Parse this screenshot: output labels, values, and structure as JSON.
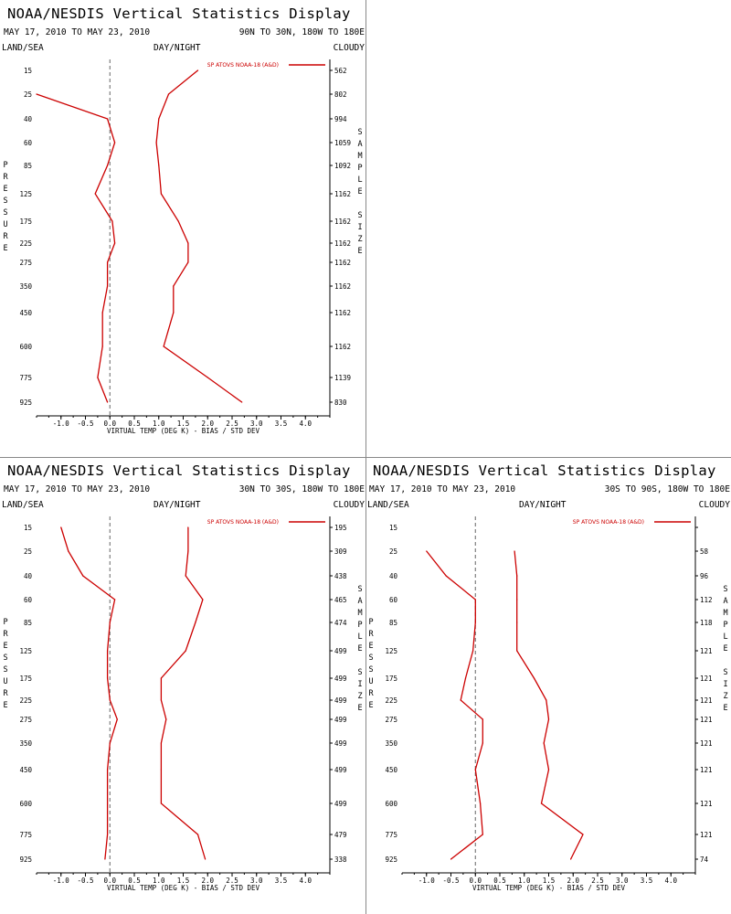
{
  "chart_data": [
    {
      "type": "line",
      "title": "NOAA/NESDIS Vertical Statistics Display",
      "dates": "MAY 17, 2010 TO MAY 23, 2010",
      "region": "90N TO 30N, 180W TO 180E",
      "header": {
        "left": "LAND/SEA",
        "center": "DAY/NIGHT",
        "right": "CLOUDY"
      },
      "xlabel": "VIRTUAL TEMP (DEG K) - BIAS / STD DEV",
      "ylabel": "PRESSURE",
      "y2label": "SAMPLE SIZE",
      "legend": "SP ATOVS NOAA-18 (A&D)",
      "xlim": [
        -1.5,
        4.5
      ],
      "x_ticks": [
        "-1.0",
        "-0.5",
        "0.0",
        "0.5",
        "1.0",
        "1.5",
        "2.0",
        "2.5",
        "3.0",
        "3.5",
        "4.0"
      ],
      "pressure": [
        "15",
        "25",
        "40",
        "60",
        "85",
        "125",
        "175",
        "225",
        "275",
        "350",
        "450",
        "600",
        "775",
        "925"
      ],
      "sample_size": [
        "562",
        "802",
        "994",
        "1059",
        "1092",
        "1162",
        "1162",
        "1162",
        "1162",
        "1162",
        "1162",
        "1162",
        "1139",
        "830"
      ],
      "series": [
        {
          "values": [
            null,
            -1.5,
            -0.05,
            0.1,
            -0.05,
            -0.3,
            0.05,
            0.1,
            -0.05,
            -0.05,
            -0.15,
            -0.15,
            -0.25,
            -0.05
          ]
        },
        {
          "values": [
            1.8,
            1.2,
            1.0,
            0.95,
            1.0,
            1.05,
            1.4,
            1.6,
            1.6,
            1.3,
            1.3,
            1.1,
            2.0,
            2.7
          ]
        }
      ]
    },
    {
      "type": "line",
      "title": "NOAA/NESDIS Vertical Statistics Display",
      "dates": "MAY 17, 2010 TO MAY 23, 2010",
      "region": "30N TO 30S, 180W TO 180E",
      "header": {
        "left": "LAND/SEA",
        "center": "DAY/NIGHT",
        "right": "CLOUDY"
      },
      "xlabel": "VIRTUAL TEMP (DEG K) - BIAS / STD DEV",
      "ylabel": "PRESSURE",
      "y2label": "SAMPLE SIZE",
      "legend": "SP ATOVS NOAA-18 (A&D)",
      "xlim": [
        -1.5,
        4.5
      ],
      "x_ticks": [
        "-1.0",
        "-0.5",
        "0.0",
        "0.5",
        "1.0",
        "1.5",
        "2.0",
        "2.5",
        "3.0",
        "3.5",
        "4.0"
      ],
      "pressure": [
        "15",
        "25",
        "40",
        "60",
        "85",
        "125",
        "175",
        "225",
        "275",
        "350",
        "450",
        "600",
        "775",
        "925"
      ],
      "sample_size": [
        "195",
        "309",
        "438",
        "465",
        "474",
        "499",
        "499",
        "499",
        "499",
        "499",
        "499",
        "499",
        "479",
        "338"
      ],
      "series": [
        {
          "values": [
            -1.0,
            -0.85,
            -0.55,
            0.1,
            0.0,
            -0.05,
            -0.05,
            0.0,
            0.15,
            0.0,
            -0.05,
            -0.05,
            -0.05,
            -0.1
          ]
        },
        {
          "values": [
            1.6,
            1.6,
            1.55,
            1.9,
            1.75,
            1.55,
            1.05,
            1.05,
            1.15,
            1.05,
            1.05,
            1.05,
            1.8,
            1.95
          ]
        }
      ]
    },
    {
      "type": "line",
      "title": "NOAA/NESDIS Vertical Statistics Display",
      "dates": "MAY 17, 2010 TO MAY 23, 2010",
      "region": "30S TO 90S, 180W TO 180E",
      "header": {
        "left": "LAND/SEA",
        "center": "DAY/NIGHT",
        "right": "CLOUDY"
      },
      "xlabel": "VIRTUAL TEMP (DEG K) - BIAS / STD DEV",
      "ylabel": "PRESSURE",
      "y2label": "SAMPLE SIZE",
      "legend": "SP ATOVS NOAA-18 (A&D)",
      "xlim": [
        -1.5,
        4.5
      ],
      "x_ticks": [
        "-1.0",
        "-0.5",
        "0.0",
        "0.5",
        "1.0",
        "1.5",
        "2.0",
        "2.5",
        "3.0",
        "3.5",
        "4.0"
      ],
      "pressure": [
        "15",
        "25",
        "40",
        "60",
        "85",
        "125",
        "175",
        "225",
        "275",
        "350",
        "450",
        "600",
        "775",
        "925"
      ],
      "sample_size": [
        "",
        "58",
        "96",
        "112",
        "118",
        "121",
        "121",
        "121",
        "121",
        "121",
        "121",
        "121",
        "121",
        "74"
      ],
      "series": [
        {
          "values": [
            null,
            -1.0,
            -0.6,
            0.0,
            0.0,
            -0.05,
            -0.2,
            -0.3,
            0.15,
            0.15,
            0.0,
            0.1,
            0.15,
            -0.5
          ]
        },
        {
          "values": [
            null,
            0.8,
            0.85,
            0.85,
            0.85,
            0.85,
            1.2,
            1.45,
            1.5,
            1.4,
            1.5,
            1.35,
            2.2,
            1.95
          ]
        }
      ]
    }
  ]
}
